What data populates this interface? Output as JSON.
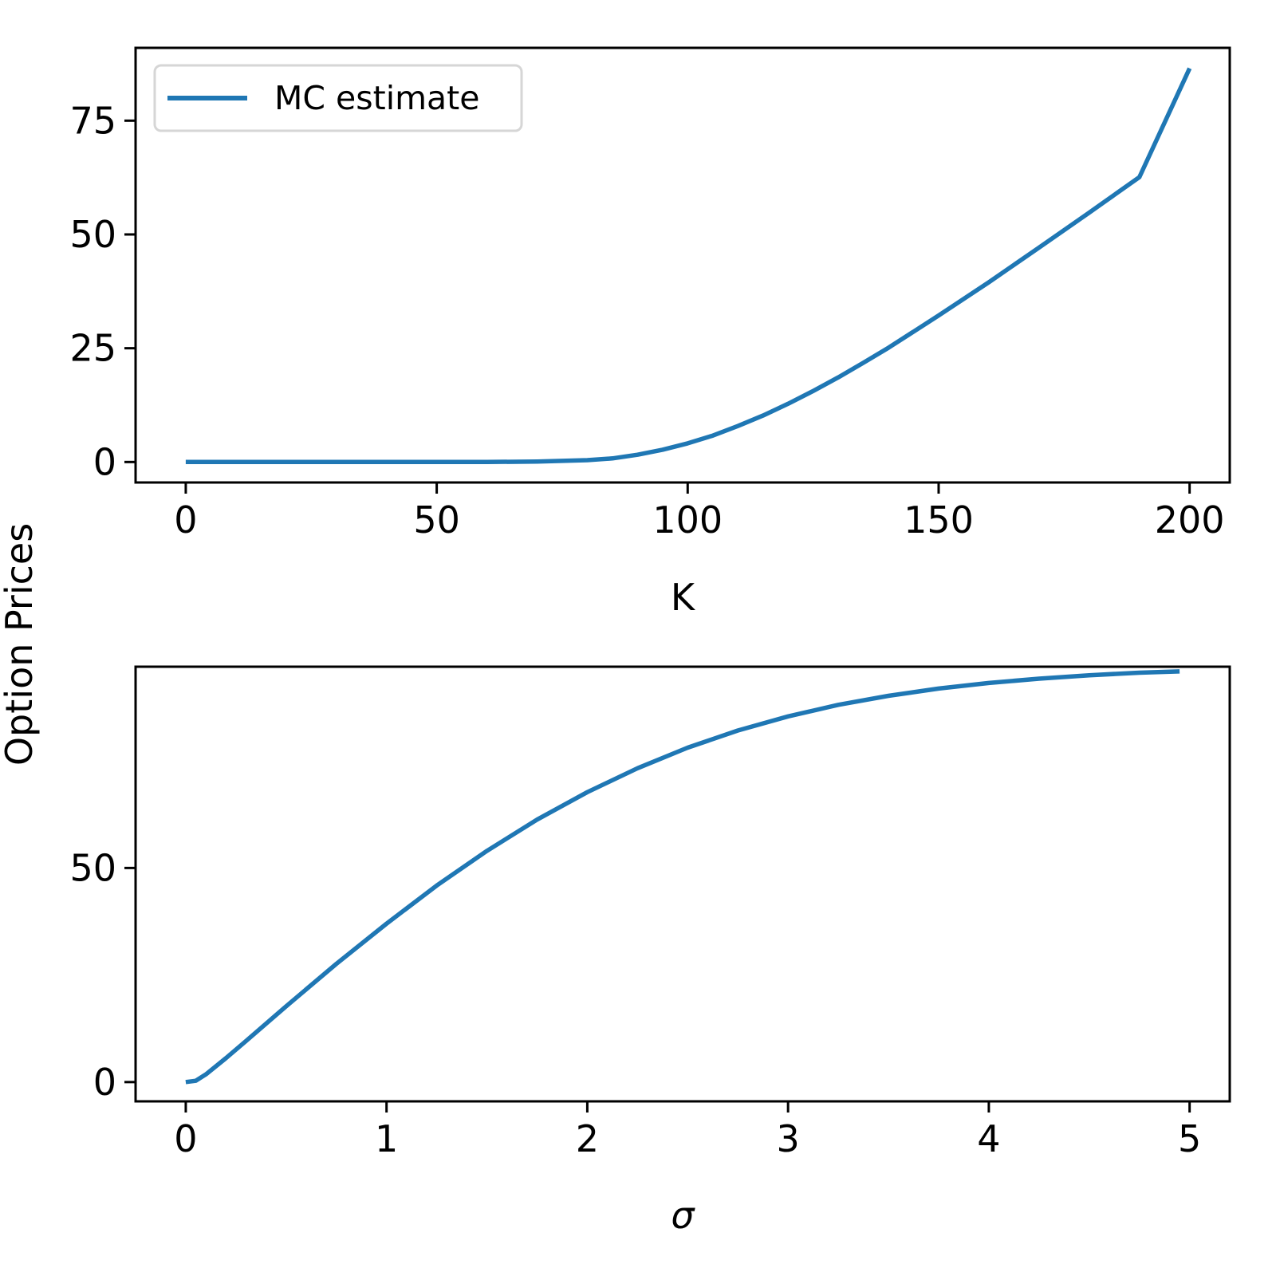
{
  "figure": {
    "shared_ylabel": "Option Prices",
    "line_color": "#1f77b4"
  },
  "chart_data": [
    {
      "type": "line",
      "title": "",
      "xlabel": "K",
      "ylabel": "",
      "xlim": [
        -10,
        208
      ],
      "ylim": [
        -4.5,
        91
      ],
      "xticks": [
        0,
        50,
        100,
        150,
        200
      ],
      "yticks": [
        0,
        25,
        50,
        75
      ],
      "grid": false,
      "legend": {
        "position": "upper-left",
        "entries": [
          "MC estimate"
        ]
      },
      "series": [
        {
          "name": "MC estimate",
          "x": [
            0,
            20,
            40,
            60,
            70,
            80,
            85,
            90,
            95,
            100,
            105,
            110,
            115,
            120,
            125,
            130,
            135,
            140,
            150,
            160,
            170,
            180,
            190,
            200
          ],
          "y": [
            0,
            0,
            0,
            0,
            0.1,
            0.4,
            0.8,
            1.6,
            2.7,
            4.1,
            5.8,
            7.9,
            10.2,
            12.8,
            15.6,
            18.6,
            21.8,
            25.1,
            32.2,
            39.5,
            47.1,
            54.8,
            62.6,
            86.5
          ]
        }
      ]
    },
    {
      "type": "line",
      "title": "",
      "xlabel": "σ",
      "ylabel": "",
      "xlim": [
        -0.25,
        5.2
      ],
      "ylim": [
        -4.5,
        97
      ],
      "xticks": [
        0,
        1,
        2,
        3,
        4,
        5
      ],
      "yticks": [
        0,
        50
      ],
      "grid": false,
      "series": [
        {
          "name": "",
          "x": [
            0,
            0.05,
            0.1,
            0.2,
            0.3,
            0.5,
            0.75,
            1.0,
            1.25,
            1.5,
            1.75,
            2.0,
            2.25,
            2.5,
            2.75,
            3.0,
            3.25,
            3.5,
            3.75,
            4.0,
            4.25,
            4.5,
            4.75,
            4.95
          ],
          "y": [
            0,
            0.3,
            1.8,
            5.6,
            9.6,
            17.7,
            27.6,
            37.0,
            45.9,
            54.0,
            61.3,
            67.7,
            73.3,
            78.1,
            82.1,
            85.4,
            88.1,
            90.2,
            91.9,
            93.2,
            94.2,
            95.0,
            95.6,
            95.9
          ]
        }
      ]
    }
  ]
}
